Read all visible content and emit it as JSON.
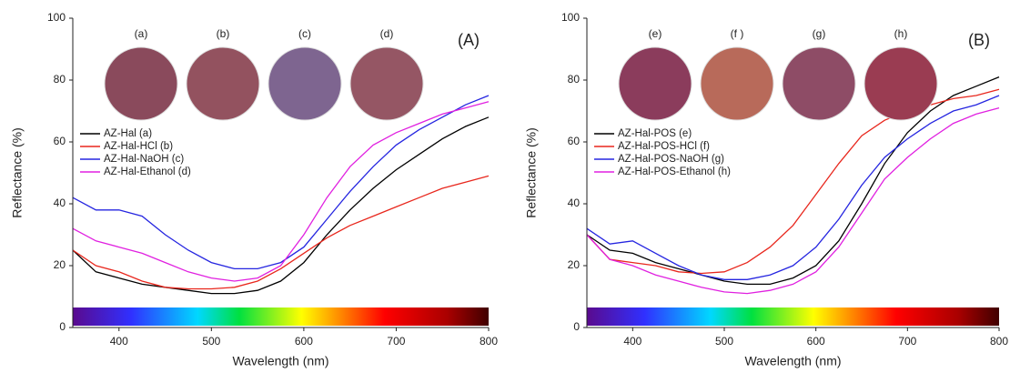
{
  "chart_data": [
    {
      "type": "line",
      "panel_label": "(A)",
      "xlabel": "Wavelength (nm)",
      "ylabel": "Reflectance (%)",
      "photo_labels": [
        "(a)",
        "(b)",
        "(c)",
        "(d)"
      ],
      "photo_colors": [
        "#8a4a5c",
        "#93525f",
        "#7e6590",
        "#955664"
      ],
      "x": [
        350,
        375,
        400,
        425,
        450,
        475,
        500,
        525,
        550,
        575,
        600,
        625,
        650,
        675,
        700,
        725,
        750,
        775,
        800
      ],
      "series": [
        {
          "name": "AZ-Hal (a)",
          "color": "#000000",
          "values": [
            25,
            18,
            16,
            14,
            13,
            12,
            11,
            11,
            12,
            15,
            21,
            30,
            38,
            45,
            51,
            56,
            61,
            65,
            68
          ]
        },
        {
          "name": "AZ-Hal-HCl (b)",
          "color": "#e8271d",
          "values": [
            25,
            20,
            18,
            15,
            13,
            12.5,
            12.5,
            13,
            15,
            19,
            24,
            29,
            33,
            36,
            39,
            42,
            45,
            47,
            49
          ]
        },
        {
          "name": "AZ-Hal-NaOH (c)",
          "color": "#2525e0",
          "values": [
            42,
            38,
            38,
            36,
            30,
            25,
            21,
            19,
            19,
            21,
            26,
            35,
            44,
            52,
            59,
            64,
            68,
            72,
            75
          ]
        },
        {
          "name": "AZ-Hal-Ethanol (d)",
          "color": "#e020e0",
          "values": [
            32,
            28,
            26,
            24,
            21,
            18,
            16,
            15,
            16,
            20,
            30,
            42,
            52,
            59,
            63,
            66,
            69,
            71,
            73
          ]
        }
      ],
      "xlim": [
        350,
        800
      ],
      "xticks": [
        400,
        500,
        600,
        700,
        800
      ],
      "ylim": [
        0,
        100
      ],
      "yticks": [
        0,
        20,
        40,
        60,
        80,
        100
      ]
    },
    {
      "type": "line",
      "panel_label": "(B)",
      "xlabel": "Wavelength (nm)",
      "ylabel": "Reflectance (%)",
      "photo_labels": [
        "(e)",
        "(f )",
        "(g)",
        "(h)"
      ],
      "photo_colors": [
        "#8b3c5c",
        "#b86a5a",
        "#8e4c66",
        "#9a3c52"
      ],
      "x": [
        350,
        375,
        400,
        425,
        450,
        475,
        500,
        525,
        550,
        575,
        600,
        625,
        650,
        675,
        700,
        725,
        750,
        775,
        800
      ],
      "series": [
        {
          "name": "AZ-Hal-POS (e)",
          "color": "#000000",
          "values": [
            30,
            25,
            24,
            21,
            19,
            17,
            15,
            14,
            14,
            16,
            20,
            28,
            40,
            53,
            63,
            70,
            75,
            78,
            81
          ]
        },
        {
          "name": "AZ-Hal-POS-HCl (f)",
          "color": "#e8271d",
          "values": [
            30,
            22,
            21,
            20,
            18,
            17.5,
            18,
            21,
            26,
            33,
            43,
            53,
            62,
            67,
            70,
            72,
            74,
            75,
            77
          ]
        },
        {
          "name": "AZ-Hal-POS-NaOH (g)",
          "color": "#2525e0",
          "values": [
            32,
            27,
            28,
            24,
            20,
            17,
            15.5,
            15.5,
            17,
            20,
            26,
            35,
            46,
            55,
            61,
            66,
            70,
            72,
            75
          ]
        },
        {
          "name": "AZ-Hal-POS-Ethanol (h)",
          "color": "#e020e0",
          "values": [
            30,
            22,
            20,
            17,
            15,
            13,
            11.5,
            11,
            12,
            14,
            18,
            26,
            37,
            48,
            55,
            61,
            66,
            69,
            71
          ]
        }
      ],
      "xlim": [
        350,
        800
      ],
      "xticks": [
        400,
        500,
        600,
        700,
        800
      ],
      "ylim": [
        0,
        100
      ],
      "yticks": [
        0,
        20,
        40,
        60,
        80,
        100
      ]
    }
  ]
}
